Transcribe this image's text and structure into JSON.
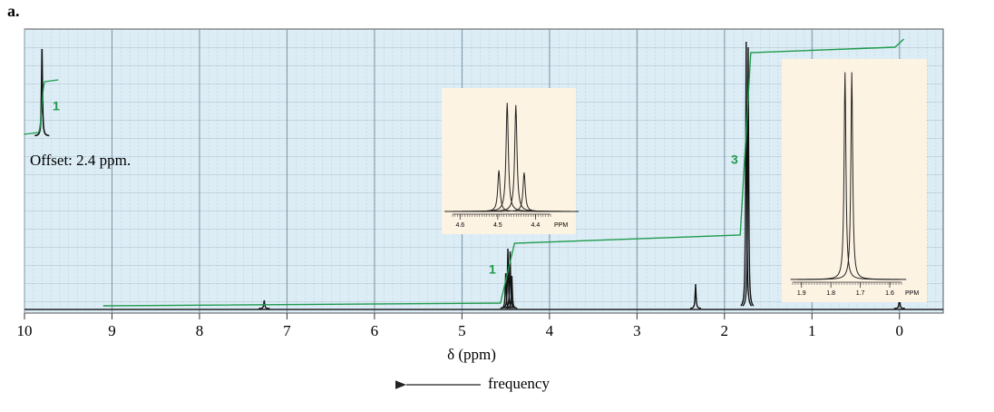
{
  "label": "a.",
  "chart_data": {
    "type": "nmr",
    "xlabel": "δ (ppm)",
    "direction_label": "frequency",
    "annotation": "Offset: 2.4 ppm.",
    "xlim": [
      10,
      -0.5
    ],
    "xticks": [
      10,
      9,
      8,
      7,
      6,
      5,
      4,
      3,
      2,
      1,
      0
    ],
    "ylim": [
      0,
      100
    ],
    "grid": true,
    "color": "#111111",
    "integral_color": "#1f9a4c",
    "peaks": {
      "x": [
        7.26,
        4.5,
        4.475,
        4.45,
        4.43,
        2.33,
        1.752,
        1.729,
        0.0
      ],
      "values": [
        3,
        13,
        22,
        21,
        12,
        9,
        98,
        96,
        4
      ]
    },
    "offset_peak": {
      "x": 9.8,
      "value": 32
    },
    "integral": {
      "x": [
        9.1,
        4.56,
        4.4,
        1.82,
        1.7,
        0.05,
        -0.05
      ],
      "values": [
        1,
        2,
        24,
        27,
        94,
        96,
        99
      ]
    },
    "integral_labels": [
      "1",
      "1",
      "3"
    ],
    "insets": [
      {
        "xlim": [
          4.62,
          4.36
        ],
        "xticks": [
          4.6,
          4.5,
          4.4
        ],
        "unit": "PPM",
        "ylim": [
          0,
          100
        ],
        "peaks": {
          "x": [
            4.497,
            4.475,
            4.452,
            4.43
          ],
          "values": [
            36,
            95,
            93,
            34
          ]
        }
      },
      {
        "xlim": [
          1.93,
          1.56
        ],
        "xticks": [
          1.9,
          1.8,
          1.7,
          1.6
        ],
        "unit": "PPM",
        "ylim": [
          0,
          100
        ],
        "peaks": {
          "x": [
            1.752,
            1.729
          ],
          "values": [
            98,
            98
          ]
        }
      }
    ]
  }
}
